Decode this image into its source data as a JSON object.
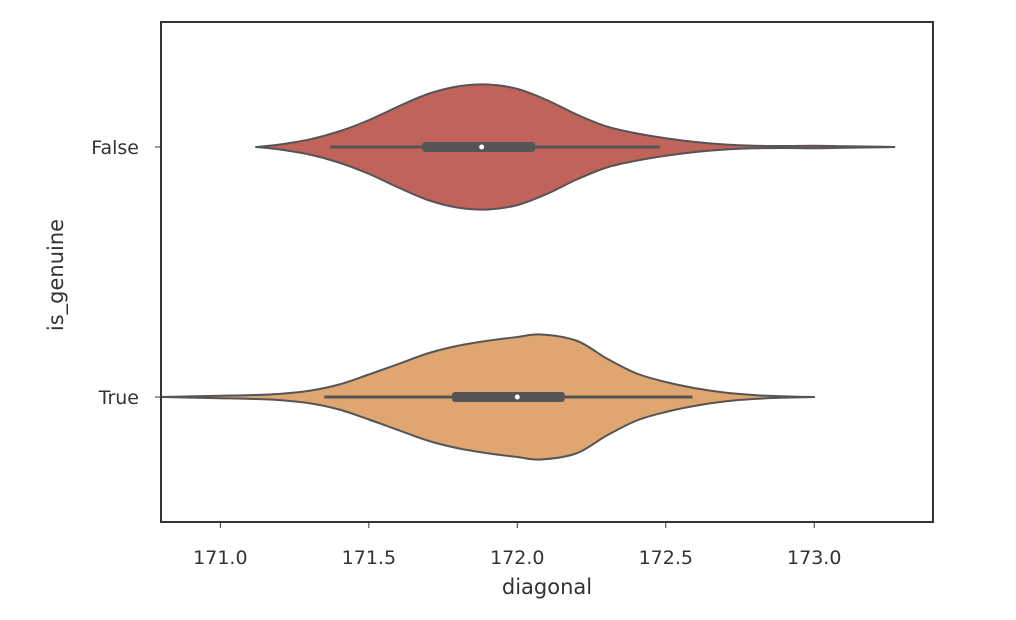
{
  "chart_data": {
    "type": "violin",
    "orientation": "horizontal",
    "xlabel": "diagonal",
    "ylabel": "is_genuine",
    "xlim": [
      170.8,
      173.4
    ],
    "x_ticks": [
      "171.0",
      "171.5",
      "172.0",
      "172.5",
      "173.0"
    ],
    "categories": [
      "False",
      "True"
    ],
    "grid": false,
    "series": [
      {
        "category": "False",
        "color": "#c0635a",
        "whisker": [
          171.37,
          172.48
        ],
        "quartiles": [
          171.68,
          172.06
        ],
        "median": 171.88,
        "density": [
          [
            171.12,
            0.0
          ],
          [
            171.2,
            0.04
          ],
          [
            171.3,
            0.12
          ],
          [
            171.4,
            0.25
          ],
          [
            171.5,
            0.43
          ],
          [
            171.6,
            0.65
          ],
          [
            171.7,
            0.85
          ],
          [
            171.8,
            0.97
          ],
          [
            171.9,
            1.0
          ],
          [
            172.0,
            0.93
          ],
          [
            172.1,
            0.75
          ],
          [
            172.2,
            0.52
          ],
          [
            172.3,
            0.33
          ],
          [
            172.4,
            0.22
          ],
          [
            172.5,
            0.14
          ],
          [
            172.6,
            0.08
          ],
          [
            172.7,
            0.04
          ],
          [
            172.8,
            0.02
          ],
          [
            172.9,
            0.015
          ],
          [
            173.0,
            0.02
          ],
          [
            173.1,
            0.012
          ],
          [
            173.2,
            0.006
          ],
          [
            173.27,
            0.0
          ]
        ]
      },
      {
        "category": "True",
        "color": "#dfa672",
        "whisker": [
          171.35,
          172.59
        ],
        "quartiles": [
          171.78,
          172.16
        ],
        "median": 172.0,
        "density": [
          [
            170.8,
            0.0
          ],
          [
            170.9,
            0.01
          ],
          [
            171.0,
            0.02
          ],
          [
            171.1,
            0.03
          ],
          [
            171.2,
            0.05
          ],
          [
            171.3,
            0.1
          ],
          [
            171.4,
            0.2
          ],
          [
            171.5,
            0.36
          ],
          [
            171.6,
            0.53
          ],
          [
            171.7,
            0.7
          ],
          [
            171.8,
            0.82
          ],
          [
            171.9,
            0.9
          ],
          [
            172.0,
            0.96
          ],
          [
            172.08,
            1.0
          ],
          [
            172.2,
            0.9
          ],
          [
            172.3,
            0.62
          ],
          [
            172.4,
            0.38
          ],
          [
            172.5,
            0.24
          ],
          [
            172.6,
            0.14
          ],
          [
            172.7,
            0.07
          ],
          [
            172.8,
            0.03
          ],
          [
            172.9,
            0.01
          ],
          [
            173.0,
            0.0
          ]
        ]
      }
    ]
  }
}
